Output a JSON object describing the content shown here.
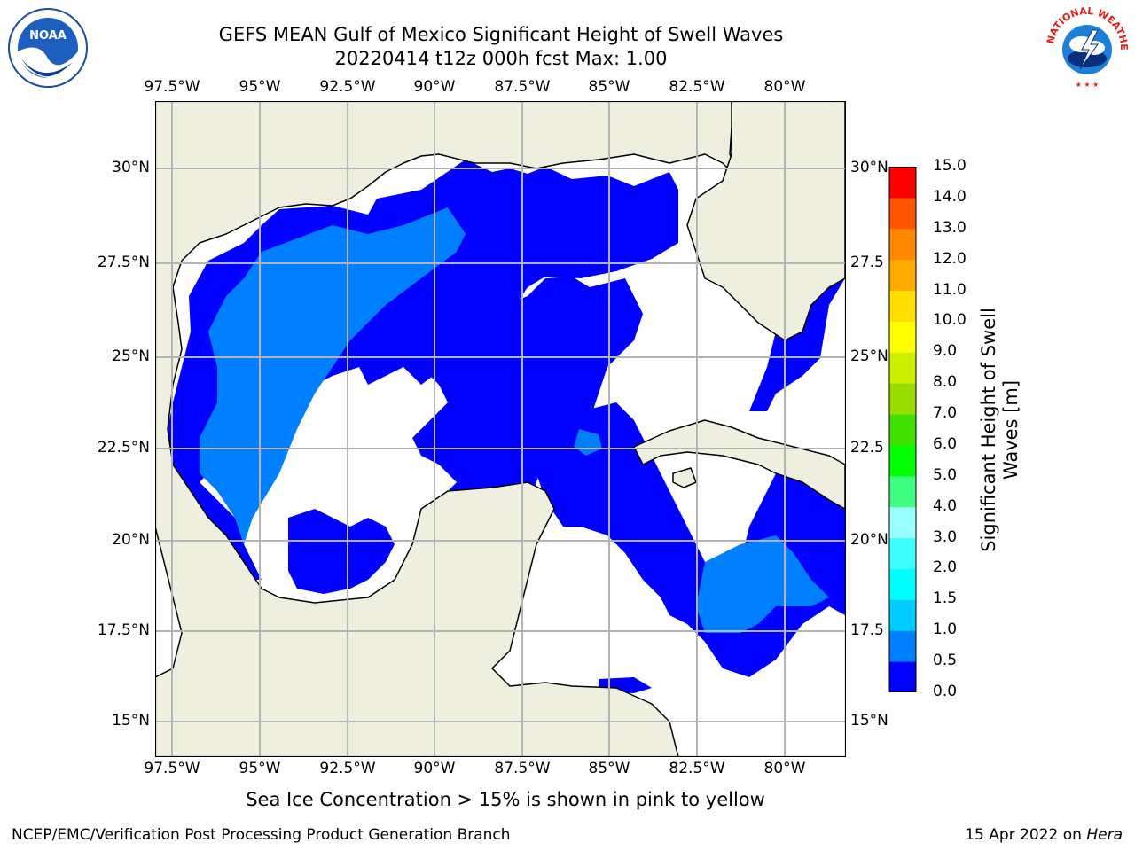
{
  "title_line1": "GEFS MEAN Gulf of Mexico Significant Height of Swell Waves",
  "title_line2": "20220414 t12z 000h fcst   Max: 1.00",
  "lon_ticks": [
    "97.5°W",
    "95°W",
    "92.5°W",
    "90°W",
    "87.5°W",
    "85°W",
    "82.5°W",
    "80°W"
  ],
  "lat_ticks_left": [
    "30°N",
    "27.5°N",
    "25°N",
    "22.5°N",
    "20°N",
    "17.5°N",
    "15°N"
  ],
  "lat_ticks_right": [
    "30°N",
    "27.5",
    "25°N",
    "22.5",
    "20°N",
    "17.5",
    "15°N"
  ],
  "colorbar": {
    "title_line1": "Significant Height of Swell",
    "title_line2": "Waves [m]",
    "labels": [
      "15.0",
      "14.0",
      "13.0",
      "12.0",
      "11.0",
      "10.0",
      "9.0",
      "8.0",
      "7.0",
      "6.0",
      "5.0",
      "4.0",
      "3.0",
      "2.0",
      "1.5",
      "1.0",
      "0.5",
      "0.0"
    ],
    "colors": [
      "#0000ff",
      "#0080ff",
      "#00ccff",
      "#00ffff",
      "#40ffff",
      "#99ffff",
      "#40ff80",
      "#00ff00",
      "#40e000",
      "#99dd00",
      "#ccee00",
      "#ffff00",
      "#ffdd00",
      "#ffaa00",
      "#ff8800",
      "#ff5500",
      "#ff0000"
    ]
  },
  "sea_ice_note": "Sea Ice Concentration > 15% is shown in pink to yellow",
  "footer_left": "NCEP/EMC/Verification Post Processing Product Generation Branch",
  "footer_right_prefix": "15 Apr 2022 on ",
  "footer_right_host": "Hera",
  "logos": {
    "left": "NOAA",
    "right": "NATIONAL WEATHER SERVICE"
  },
  "colors": {
    "land": "#efefdf",
    "swell_low": "#0000ff",
    "swell_mid": "#0080ff",
    "grid": "#b4b4b4"
  }
}
